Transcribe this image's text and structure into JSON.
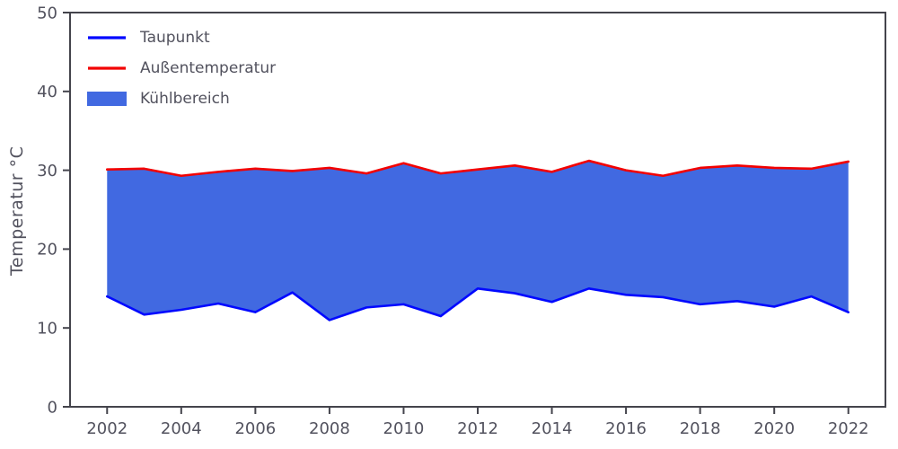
{
  "chart_data": {
    "type": "area",
    "title": "",
    "xlabel": "",
    "ylabel": "Temperatur °C",
    "x": [
      2002,
      2003,
      2004,
      2005,
      2006,
      2007,
      2008,
      2009,
      2010,
      2011,
      2012,
      2013,
      2014,
      2015,
      2016,
      2017,
      2018,
      2019,
      2020,
      2021,
      2022
    ],
    "series": [
      {
        "name": "Taupunkt",
        "color": "#0008ff",
        "values": [
          14.0,
          11.7,
          12.3,
          13.1,
          12.0,
          14.5,
          11.0,
          12.6,
          13.0,
          11.5,
          15.0,
          14.4,
          13.3,
          15.0,
          14.2,
          13.9,
          13.0,
          13.4,
          12.7,
          14.0,
          12.0
        ]
      },
      {
        "name": "Außentemperatur",
        "color": "#f20000",
        "values": [
          30.1,
          30.2,
          29.3,
          29.8,
          30.2,
          29.9,
          30.3,
          29.6,
          30.9,
          29.6,
          30.1,
          30.6,
          29.8,
          31.2,
          30.0,
          29.3,
          30.3,
          30.6,
          30.3,
          30.2,
          31.1
        ]
      }
    ],
    "fill": {
      "name": "Kühlbereich",
      "color": "#4169e1",
      "between": [
        "Taupunkt",
        "Außentemperatur"
      ]
    },
    "xlim": [
      2001,
      2023
    ],
    "ylim": [
      0,
      50
    ],
    "xticks": [
      2002,
      2004,
      2006,
      2008,
      2010,
      2012,
      2014,
      2016,
      2018,
      2020,
      2022
    ],
    "yticks": [
      0,
      10,
      20,
      30,
      40,
      50
    ],
    "grid": false,
    "legend_position": "upper-left",
    "axis_color": "#44444c",
    "text_color": "#52525e"
  }
}
